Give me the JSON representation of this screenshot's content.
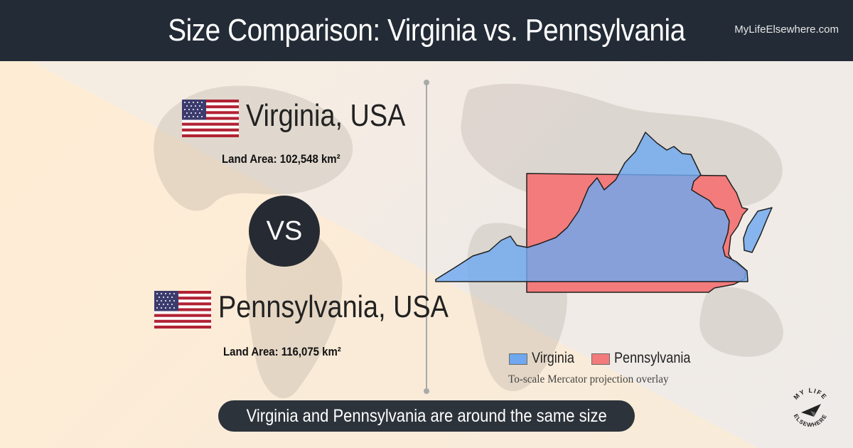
{
  "header": {
    "title": "Size Comparison: Virginia vs. Pennsylvania",
    "brand": "MyLifeElsewhere.com"
  },
  "regions": [
    {
      "name": "Virginia, USA",
      "land_area": "Land Area: 102,548 km²",
      "flag_icon": "us-flag-icon"
    },
    {
      "name": "Pennsylvania, USA",
      "land_area": "Land Area: 116,075 km²",
      "flag_icon": "us-flag-icon"
    }
  ],
  "vs_label": "VS",
  "legend": {
    "items": [
      {
        "label": "Virginia",
        "color": "#6fa8ef"
      },
      {
        "label": "Pennsylvania",
        "color": "#f37b7b"
      }
    ],
    "caption": "To-scale Mercator projection overlay"
  },
  "summary": "Virginia and Pennsylvania are around the same size",
  "logo": {
    "text_top": "MY LIFE",
    "text_bottom": "ELSEWHERE"
  },
  "colors": {
    "header_bg": "#232b36",
    "virginia": "#6fa8ef",
    "pennsylvania": "#f37b7b",
    "pill_bg": "#2d333b"
  }
}
